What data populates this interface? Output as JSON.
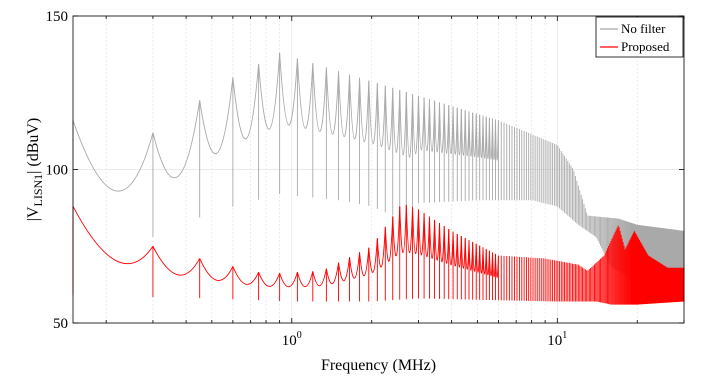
{
  "chart_data": {
    "type": "line",
    "xlabel": "Frequency (MHz)",
    "ylabel_prefix": "|V",
    "ylabel_sub": "LISN1",
    "ylabel_suffix": "| (dBuV)",
    "xscale": "log",
    "xlim": [
      0.15,
      30
    ],
    "ylim": [
      50,
      150
    ],
    "yticks": [
      50,
      100,
      150
    ],
    "xticks": [
      {
        "value": 1,
        "base": "10",
        "exp": "0"
      },
      {
        "value": 10,
        "base": "10",
        "exp": "1"
      }
    ],
    "grid": true,
    "legend_position": "top-right",
    "series": [
      {
        "name": "No filter",
        "color": "#a9a9a9",
        "peaks": [
          [
            0.15,
            116
          ],
          [
            0.3,
            112
          ],
          [
            0.6,
            130
          ],
          [
            0.9,
            138
          ],
          [
            1.5,
            132
          ],
          [
            3,
            124
          ],
          [
            6,
            116
          ],
          [
            10,
            108
          ],
          [
            11.5,
            100
          ],
          [
            13,
            85
          ],
          [
            17,
            84
          ],
          [
            20,
            82
          ],
          [
            30,
            80
          ]
        ],
        "floor": [
          [
            0.15,
            72
          ],
          [
            0.3,
            78
          ],
          [
            0.5,
            86
          ],
          [
            0.9,
            92
          ],
          [
            1.5,
            90
          ],
          [
            2,
            88
          ],
          [
            2.7,
            83
          ],
          [
            3,
            89
          ],
          [
            5,
            90
          ],
          [
            8,
            90
          ],
          [
            10,
            88
          ],
          [
            12,
            82
          ],
          [
            14,
            78
          ],
          [
            16,
            68
          ],
          [
            19,
            65
          ],
          [
            22,
            66
          ],
          [
            30,
            65
          ]
        ],
        "bumps": [
          [
            0.9,
            105
          ],
          [
            1.3,
            103
          ],
          [
            1.9,
            103
          ],
          [
            2.2,
            99
          ],
          [
            10,
            91
          ],
          [
            13,
            78
          ],
          [
            17,
            79
          ],
          [
            21,
            75
          ],
          [
            25,
            76
          ],
          [
            30,
            76
          ]
        ]
      },
      {
        "name": "Proposed",
        "color": "#ff0000",
        "peaks": [
          [
            0.15,
            88
          ],
          [
            0.2,
            84
          ],
          [
            0.3,
            75
          ],
          [
            0.5,
            70
          ],
          [
            0.8,
            66
          ],
          [
            1.3,
            67
          ],
          [
            2,
            75
          ],
          [
            2.6,
            89
          ],
          [
            3,
            87
          ],
          [
            4,
            80
          ],
          [
            6,
            72
          ],
          [
            9,
            71
          ],
          [
            12,
            69
          ],
          [
            13,
            67
          ],
          [
            15,
            72
          ],
          [
            17,
            82
          ],
          [
            18,
            74
          ],
          [
            19.5,
            80
          ],
          [
            22,
            72
          ],
          [
            26,
            68
          ],
          [
            30,
            68
          ]
        ],
        "floor": [
          [
            0.15,
            59
          ],
          [
            0.5,
            58
          ],
          [
            1,
            57
          ],
          [
            2,
            57
          ],
          [
            3,
            58
          ],
          [
            10,
            57
          ],
          [
            14,
            57
          ],
          [
            16,
            56
          ],
          [
            20,
            56
          ],
          [
            30,
            57
          ]
        ]
      }
    ]
  }
}
